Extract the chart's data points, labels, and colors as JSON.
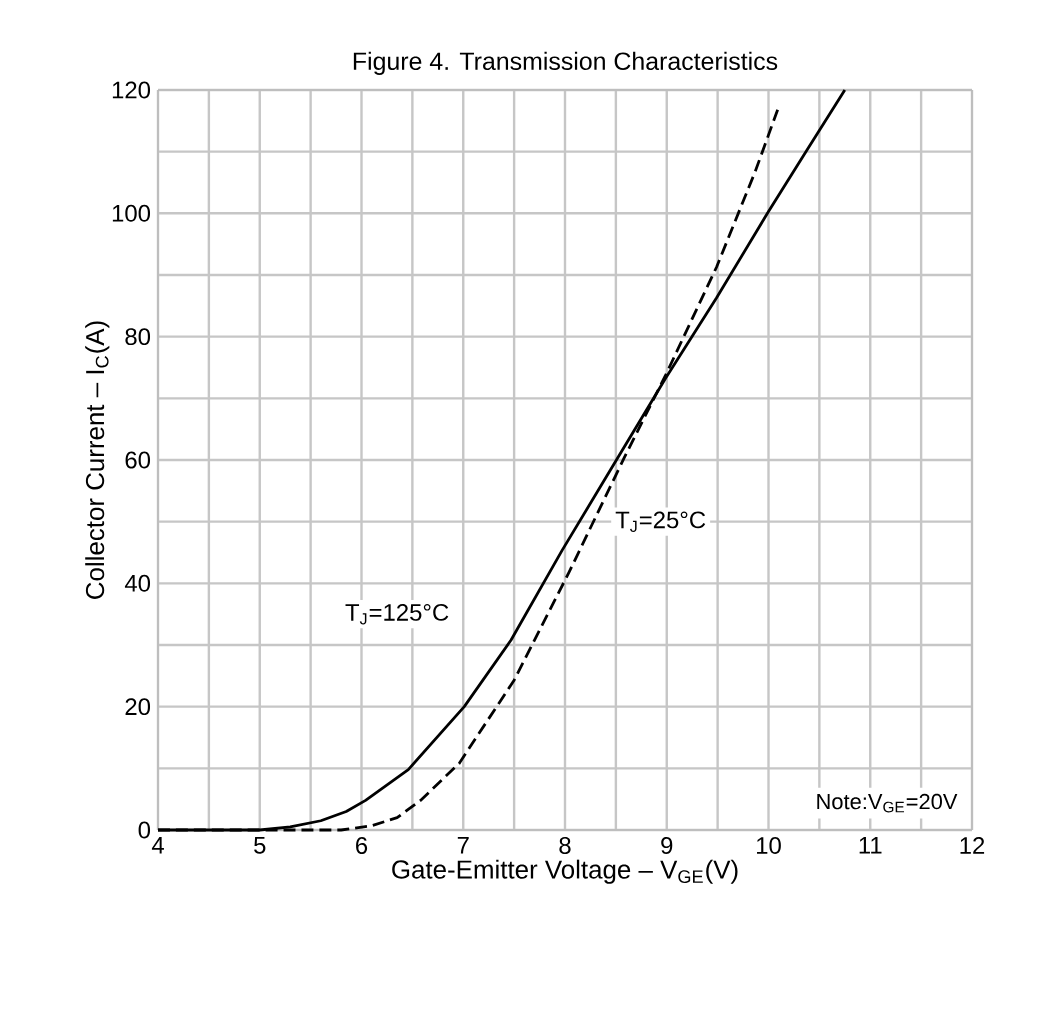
{
  "chart_data": {
    "type": "line",
    "title": "Figure 4. Transmission Characteristics",
    "xlabel": "Gate-Emitter Voltage  –  V$_{GE}$(V)",
    "ylabel": "Collector Current  –  I$_{C}$(A)",
    "xlim": [
      4,
      12
    ],
    "ylim": [
      0,
      120
    ],
    "xticks": [
      4,
      5,
      6,
      7,
      8,
      9,
      10,
      11,
      12
    ],
    "yticks": [
      0,
      20,
      40,
      60,
      80,
      100,
      120
    ],
    "grid": true,
    "annotations": [
      "Note:V$_{GE}$=20V"
    ],
    "series": [
      {
        "name": "T$_{J}$=125°C",
        "color": "#000000",
        "line_style": "solid",
        "x": [
          4,
          5,
          5.3,
          5.6,
          5.85,
          6.04,
          6.46,
          7.01,
          7.47,
          7.97,
          8.48,
          8.99,
          9.49,
          10.0,
          10.38,
          10.75
        ],
        "values": [
          0,
          0,
          0.5,
          1.5,
          3,
          4.8,
          9.8,
          20,
          30.8,
          45.3,
          59.3,
          73.3,
          86.3,
          100.3,
          110.3,
          120
        ]
      },
      {
        "name": "T$_{J}$=25°C",
        "color": "#000000",
        "line_style": "dashed",
        "x": [
          4,
          5.8,
          6.1,
          6.35,
          6.58,
          6.96,
          7.5,
          8.04,
          8.58,
          8.99,
          9.49,
          9.87,
          10.09
        ],
        "values": [
          0,
          0,
          0.7,
          2,
          4.8,
          10.8,
          24.3,
          41.8,
          60.3,
          73.8,
          91.3,
          106.8,
          116.8
        ]
      }
    ]
  }
}
